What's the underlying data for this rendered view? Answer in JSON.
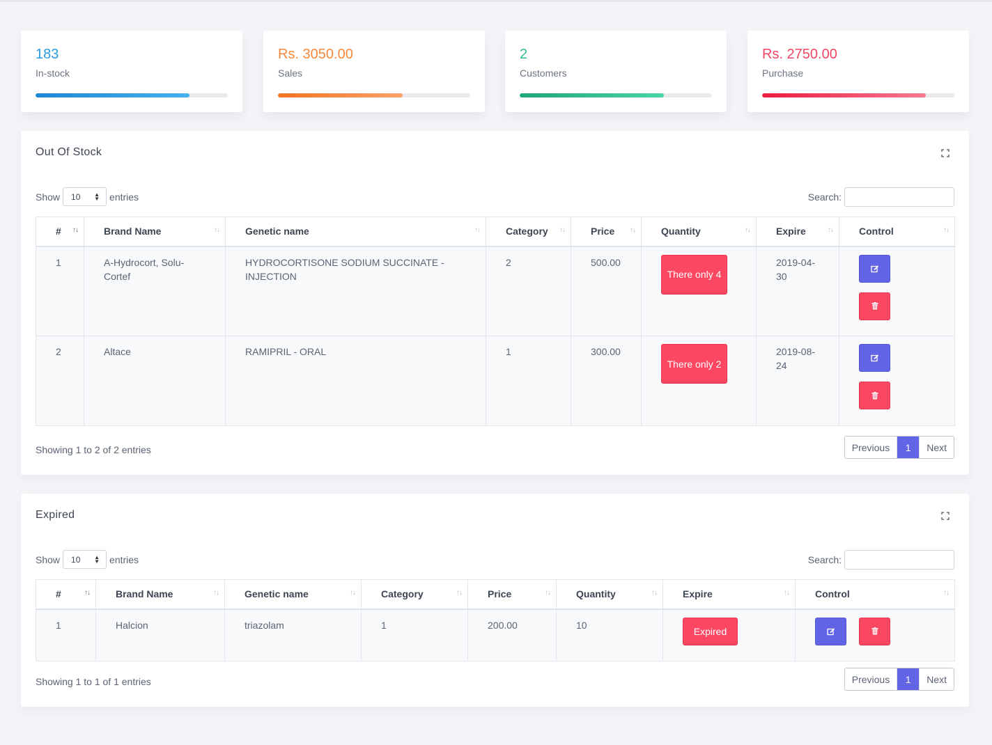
{
  "stats": [
    {
      "value": "183",
      "label": "In-stock",
      "color": "#2a9be0",
      "progress_pct": 80
    },
    {
      "value": "Rs. 3050.00",
      "label": "Sales",
      "color": "#f7893a",
      "progress_pct": 65
    },
    {
      "value": "2",
      "label": "Customers",
      "color": "#2dbe95",
      "progress_pct": 75
    },
    {
      "value": "Rs. 2750.00",
      "label": "Purchase",
      "color": "#f04664",
      "progress_pct": 85
    }
  ],
  "out_of_stock": {
    "title": "Out Of Stock",
    "show_label": "Show",
    "entries_value": "10",
    "entries_label": "entries",
    "search_label": "Search:",
    "columns": [
      "#",
      "Brand Name",
      "Genetic name",
      "Category",
      "Price",
      "Quantity",
      "Expire",
      "Control"
    ],
    "rows": [
      {
        "num": "1",
        "brand": "A-Hydrocort, Solu-Cortef",
        "genetic": "HYDROCORTISONE SODIUM SUCCINATE - INJECTION",
        "category": "2",
        "price": "500.00",
        "quantity": "There only 4",
        "expire": "2019-04-30"
      },
      {
        "num": "2",
        "brand": "Altace",
        "genetic": "RAMIPRIL - ORAL",
        "category": "1",
        "price": "300.00",
        "quantity": "There only 2",
        "expire": "2019-08-24"
      }
    ],
    "info": "Showing 1 to 2 of 2 entries",
    "pager": {
      "prev": "Previous",
      "current": "1",
      "next": "Next"
    }
  },
  "expired": {
    "title": "Expired",
    "show_label": "Show",
    "entries_value": "10",
    "entries_label": "entries",
    "search_label": "Search:",
    "columns": [
      "#",
      "Brand Name",
      "Genetic name",
      "Category",
      "Price",
      "Quantity",
      "Expire",
      "Control"
    ],
    "rows": [
      {
        "num": "1",
        "brand": "Halcion",
        "genetic": "triazolam",
        "category": "1",
        "price": "200.00",
        "quantity": "10",
        "expire": "Expired"
      }
    ],
    "info": "Showing 1 to 1 of 1 entries",
    "pager": {
      "prev": "Previous",
      "current": "1",
      "next": "Next"
    }
  },
  "colors": {
    "accent": "#6164e4",
    "danger": "#fc4763"
  }
}
